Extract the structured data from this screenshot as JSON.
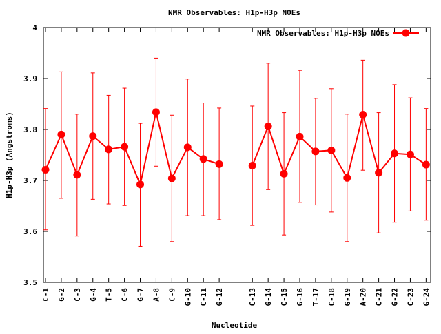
{
  "chart_data": {
    "type": "line",
    "title": "NMR Observables: H1p-H3p NOEs",
    "xlabel": "Nucleotide",
    "ylabel": "H1p-H3p (Angstroms)",
    "ylim": [
      3.5,
      4.0
    ],
    "yticks": [
      "3.5",
      "3.6",
      "3.7",
      "3.8",
      "3.9",
      "4"
    ],
    "grid": false,
    "legend_position": "top-right",
    "series_color": "#ff0000",
    "gap_after_index": 11,
    "categories": [
      "C-1",
      "G-2",
      "C-3",
      "G-4",
      "T-5",
      "C-6",
      "G-7",
      "A-8",
      "C-9",
      "G-10",
      "C-11",
      "G-12",
      "C-13",
      "G-14",
      "C-15",
      "G-16",
      "T-17",
      "C-18",
      "G-19",
      "A-20",
      "C-21",
      "G-22",
      "C-23",
      "G-24"
    ],
    "series": [
      {
        "name": "NMR Observables: H1p-H3p NOEs",
        "values": [
          3.721,
          3.79,
          3.711,
          3.787,
          3.761,
          3.766,
          3.692,
          3.834,
          3.704,
          3.765,
          3.742,
          3.732,
          3.729,
          3.806,
          3.713,
          3.786,
          3.757,
          3.759,
          3.705,
          3.829,
          3.715,
          3.753,
          3.751,
          3.731
        ],
        "err_low": [
          3.603,
          3.665,
          3.591,
          3.663,
          3.654,
          3.651,
          3.571,
          3.728,
          3.58,
          3.631,
          3.631,
          3.623,
          3.612,
          3.682,
          3.593,
          3.657,
          3.652,
          3.638,
          3.58,
          3.72,
          3.597,
          3.618,
          3.64,
          3.622
        ],
        "err_high": [
          3.841,
          3.913,
          3.83,
          3.911,
          3.867,
          3.881,
          3.812,
          3.94,
          3.828,
          3.899,
          3.852,
          3.842,
          3.846,
          3.93,
          3.833,
          3.916,
          3.861,
          3.88,
          3.83,
          3.936,
          3.833,
          3.888,
          3.862,
          3.841
        ]
      }
    ]
  }
}
